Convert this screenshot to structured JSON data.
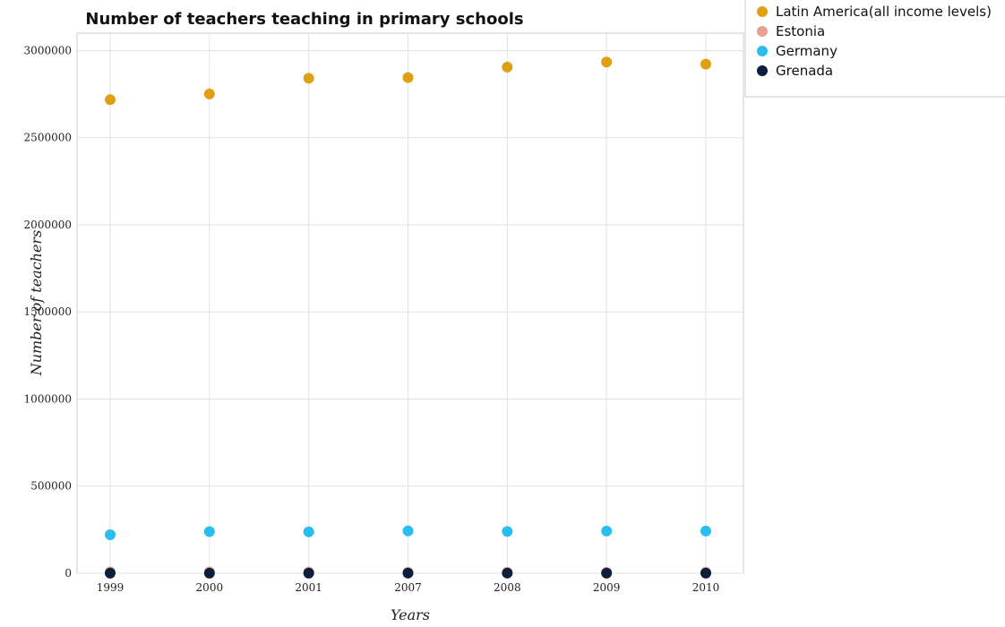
{
  "chart_data": {
    "type": "scatter",
    "title": "Number of teachers teaching in primary schools",
    "xlabel": "Years",
    "ylabel": "Number of teachers",
    "categories": [
      "1999",
      "2000",
      "2001",
      "2007",
      "2008",
      "2009",
      "2010"
    ],
    "ylim": [
      0,
      3100000
    ],
    "yticks": [
      0,
      500000,
      1000000,
      1500000,
      2000000,
      2500000,
      3000000
    ],
    "ytick_labels": [
      "0",
      "500000",
      "1000000",
      "1500000",
      "2000000",
      "2500000",
      "3000000"
    ],
    "grid": true,
    "legend_position": "top-right",
    "series": [
      {
        "name": "Latin America(all income levels)",
        "color": "#e0a013",
        "values": [
          2718000,
          2751000,
          2841000,
          2845000,
          2905000,
          2934000,
          2922000
        ]
      },
      {
        "name": "Estonia",
        "color": "#e8a090",
        "values": [
          7800,
          7500,
          7300,
          6000,
          6000,
          6000,
          6200
        ]
      },
      {
        "name": "Germany",
        "color": "#29bdf0",
        "values": [
          221000,
          239000,
          238000,
          243000,
          240000,
          242000,
          242000
        ]
      },
      {
        "name": "Grenada",
        "color": "#0c1f3d",
        "values": [
          900,
          870,
          870,
          950,
          950,
          900,
          850
        ]
      }
    ]
  }
}
